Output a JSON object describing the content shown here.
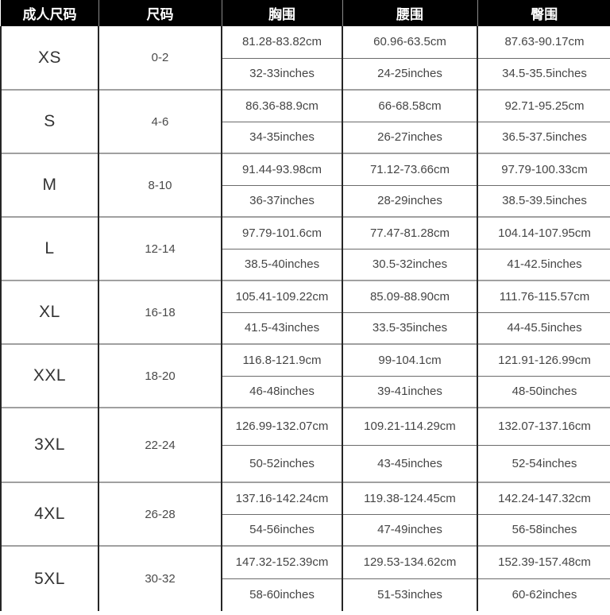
{
  "colors": {
    "header_bg": "#000000",
    "header_text": "#ffffff",
    "body_text": "#454545",
    "column_border": "#262626",
    "group_divider": "#a0a0a0",
    "subrow_divider": "#6b6b6b"
  },
  "chart_data": {
    "type": "table",
    "columns": [
      "成人尺码",
      "尺码",
      "胸围",
      "腰围",
      "臀围"
    ],
    "rows": [
      {
        "size": "XS",
        "size_range": "0-2",
        "chest_cm": "81.28-83.82cm",
        "waist_cm": "60.96-63.5cm",
        "hip_cm": "87.63-90.17cm",
        "chest_in": "32-33inches",
        "waist_in": "24-25inches",
        "hip_in": "34.5-35.5inches"
      },
      {
        "size": "S",
        "size_range": "4-6",
        "chest_cm": "86.36-88.9cm",
        "waist_cm": "66-68.58cm",
        "hip_cm": "92.71-95.25cm",
        "chest_in": "34-35inches",
        "waist_in": "26-27inches",
        "hip_in": "36.5-37.5inches"
      },
      {
        "size": "M",
        "size_range": "8-10",
        "chest_cm": "91.44-93.98cm",
        "waist_cm": "71.12-73.66cm",
        "hip_cm": "97.79-100.33cm",
        "chest_in": "36-37inches",
        "waist_in": "28-29inches",
        "hip_in": "38.5-39.5inches"
      },
      {
        "size": "L",
        "size_range": "12-14",
        "chest_cm": "97.79-101.6cm",
        "waist_cm": "77.47-81.28cm",
        "hip_cm": "104.14-107.95cm",
        "chest_in": "38.5-40inches",
        "waist_in": "30.5-32inches",
        "hip_in": "41-42.5inches"
      },
      {
        "size": "XL",
        "size_range": "16-18",
        "chest_cm": "105.41-109.22cm",
        "waist_cm": "85.09-88.90cm",
        "hip_cm": "111.76-115.57cm",
        "chest_in": "41.5-43inches",
        "waist_in": "33.5-35inches",
        "hip_in": "44-45.5inches"
      },
      {
        "size": "XXL",
        "size_range": "18-20",
        "chest_cm": "116.8-121.9cm",
        "waist_cm": "99-104.1cm",
        "hip_cm": "121.91-126.99cm",
        "chest_in": "46-48inches",
        "waist_in": "39-41inches",
        "hip_in": "48-50inches"
      },
      {
        "size": "3XL",
        "size_range": "22-24",
        "chest_cm": "126.99-132.07cm",
        "waist_cm": "109.21-114.29cm",
        "hip_cm": "132.07-137.16cm",
        "chest_in": "50-52inches",
        "waist_in": "43-45inches",
        "hip_in": "52-54inches"
      },
      {
        "size": "4XL",
        "size_range": "26-28",
        "chest_cm": "137.16-142.24cm",
        "waist_cm": "119.38-124.45cm",
        "hip_cm": "142.24-147.32cm",
        "chest_in": "54-56inches",
        "waist_in": "47-49inches",
        "hip_in": "56-58inches"
      },
      {
        "size": "5XL",
        "size_range": "30-32",
        "chest_cm": "147.32-152.39cm",
        "waist_cm": "129.53-134.62cm",
        "hip_cm": "152.39-157.48cm",
        "chest_in": "58-60inches",
        "waist_in": "51-53inches",
        "hip_in": "60-62inches"
      }
    ]
  }
}
